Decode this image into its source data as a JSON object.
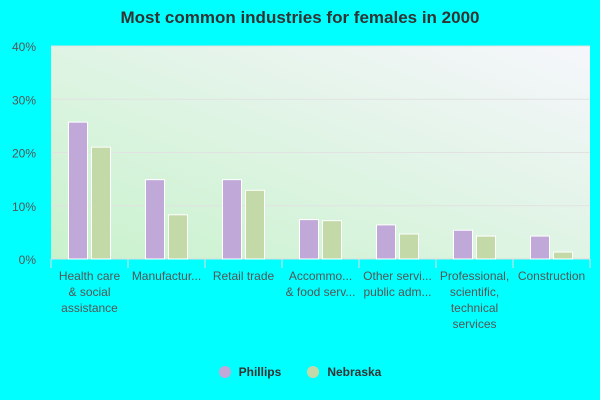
{
  "chart_data": {
    "type": "bar",
    "title": "Most common industries for females in 2000",
    "categories": [
      [
        "Health care",
        "& social",
        "assistance"
      ],
      [
        "Manufactur..."
      ],
      [
        "Retail trade"
      ],
      [
        "Accommo...",
        "& food serv..."
      ],
      [
        "Other servi...",
        "public adm..."
      ],
      [
        "Professional,",
        "scientific,",
        "technical",
        "services"
      ],
      [
        "Construction"
      ]
    ],
    "series": [
      {
        "name": "Phillips",
        "color": "#c0a8d9",
        "values": [
          25.7,
          14.9,
          14.9,
          7.4,
          6.4,
          5.4,
          4.3
        ]
      },
      {
        "name": "Nebraska",
        "color": "#c4d9a8",
        "values": [
          21.0,
          8.3,
          12.9,
          7.2,
          4.7,
          4.3,
          1.3
        ]
      }
    ],
    "yticks": [
      "0%",
      "10%",
      "20%",
      "30%",
      "40%"
    ],
    "ylim": [
      0,
      40
    ],
    "grid": true,
    "legend_position": "bottom"
  }
}
